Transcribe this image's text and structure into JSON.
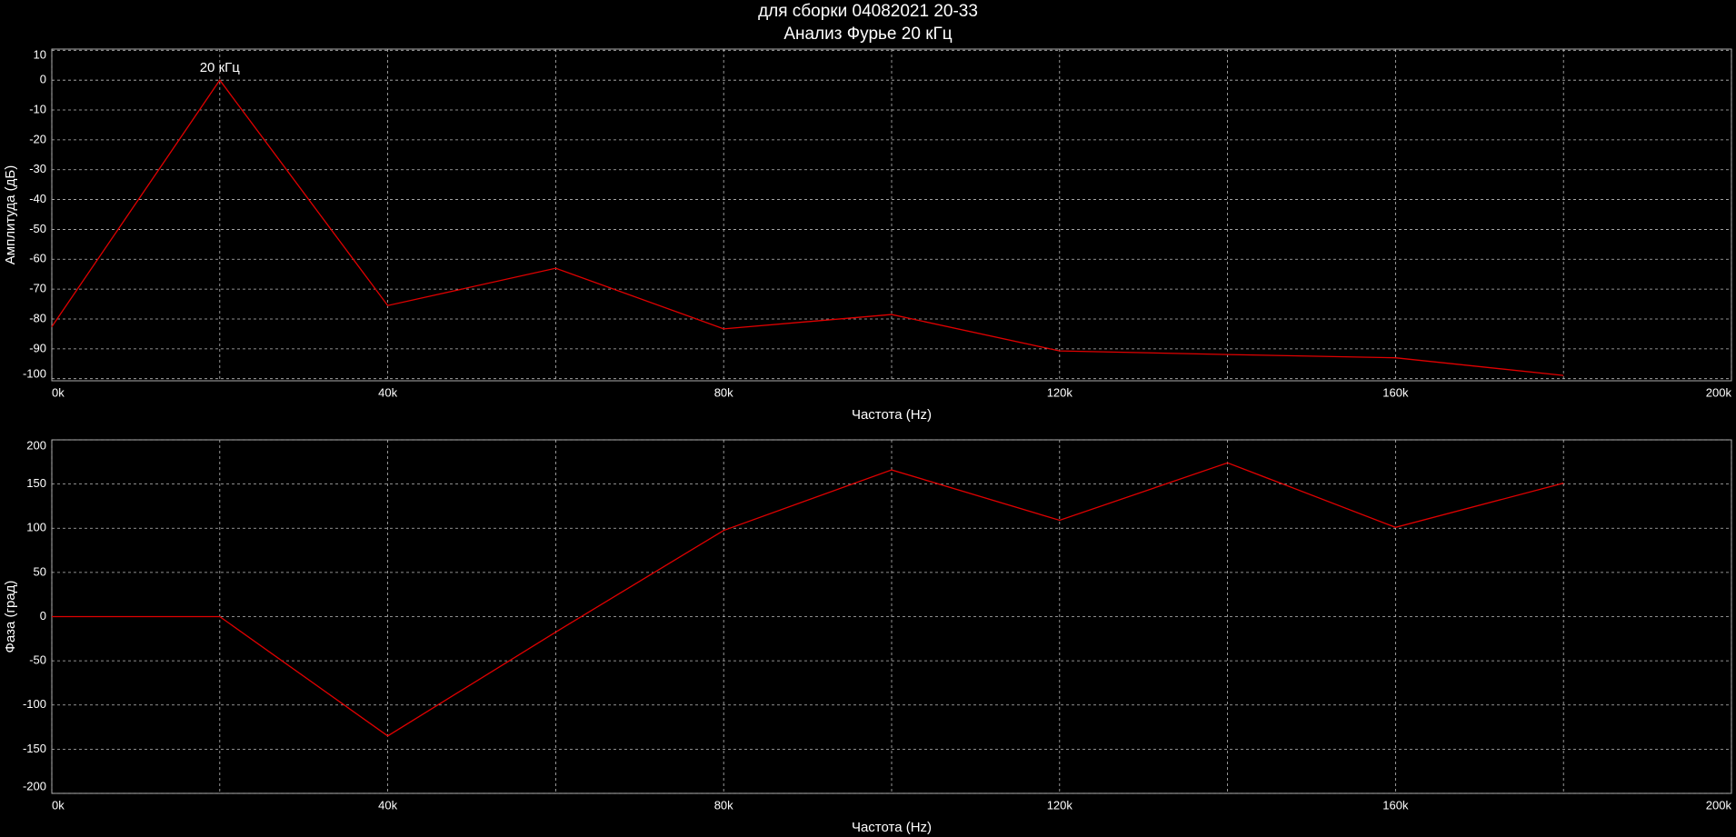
{
  "chart_data": [
    {
      "type": "line",
      "title": "для сборки 04082021 20-33",
      "subtitle": "Анализ Фурье 20 кГц",
      "xlabel": "Частота (Hz)",
      "ylabel": "Амплитуда (дБ)",
      "x": [
        0,
        20000,
        40000,
        60000,
        80000,
        100000,
        120000,
        140000,
        160000,
        180000
      ],
      "series": [
        {
          "color": "#e00000",
          "values": [
            -82.6,
            0,
            -75.5,
            -63,
            -83.3,
            -78.5,
            -90.7,
            -91.9,
            -93,
            -98.9
          ]
        }
      ],
      "annotations": [
        {
          "text": "20 кГц",
          "x": 20000,
          "y": 0
        }
      ],
      "xlim": [
        0,
        200000
      ],
      "xticks": [
        {
          "value": 0,
          "label": "0k"
        },
        {
          "value": 40000,
          "label": "40k"
        },
        {
          "value": 80000,
          "label": "80k"
        },
        {
          "value": 120000,
          "label": "120k"
        },
        {
          "value": 160000,
          "label": "160k"
        },
        {
          "value": 200000,
          "label": "200k"
        }
      ],
      "xminorticks": [
        20000,
        60000,
        100000,
        140000,
        180000
      ],
      "ylim": [
        -100.7,
        10.4
      ],
      "yticks": [
        10,
        0,
        -10,
        -20,
        -30,
        -40,
        -50,
        -60,
        -70,
        -80,
        -90,
        -100
      ],
      "grid": true
    },
    {
      "type": "line",
      "xlabel": "Частота (Hz)",
      "ylabel": "Фаза (град)",
      "x": [
        0,
        20000,
        40000,
        60000,
        80000,
        100000,
        120000,
        140000,
        160000,
        180000
      ],
      "series": [
        {
          "color": "#e00000",
          "values": [
            0,
            0,
            -135,
            -17.5,
            97.5,
            166,
            109,
            174,
            101,
            151
          ]
        }
      ],
      "xlim": [
        0,
        200000
      ],
      "xticks": [
        {
          "value": 0,
          "label": "0k"
        },
        {
          "value": 40000,
          "label": "40k"
        },
        {
          "value": 80000,
          "label": "80k"
        },
        {
          "value": 120000,
          "label": "120k"
        },
        {
          "value": 160000,
          "label": "160k"
        },
        {
          "value": 200000,
          "label": "200k"
        }
      ],
      "xminorticks": [
        20000,
        60000,
        100000,
        140000,
        180000
      ],
      "ylim": [
        -200,
        200
      ],
      "yticks": [
        200,
        150,
        100,
        50,
        0,
        -50,
        -100,
        -150,
        -200
      ],
      "grid": true
    }
  ]
}
